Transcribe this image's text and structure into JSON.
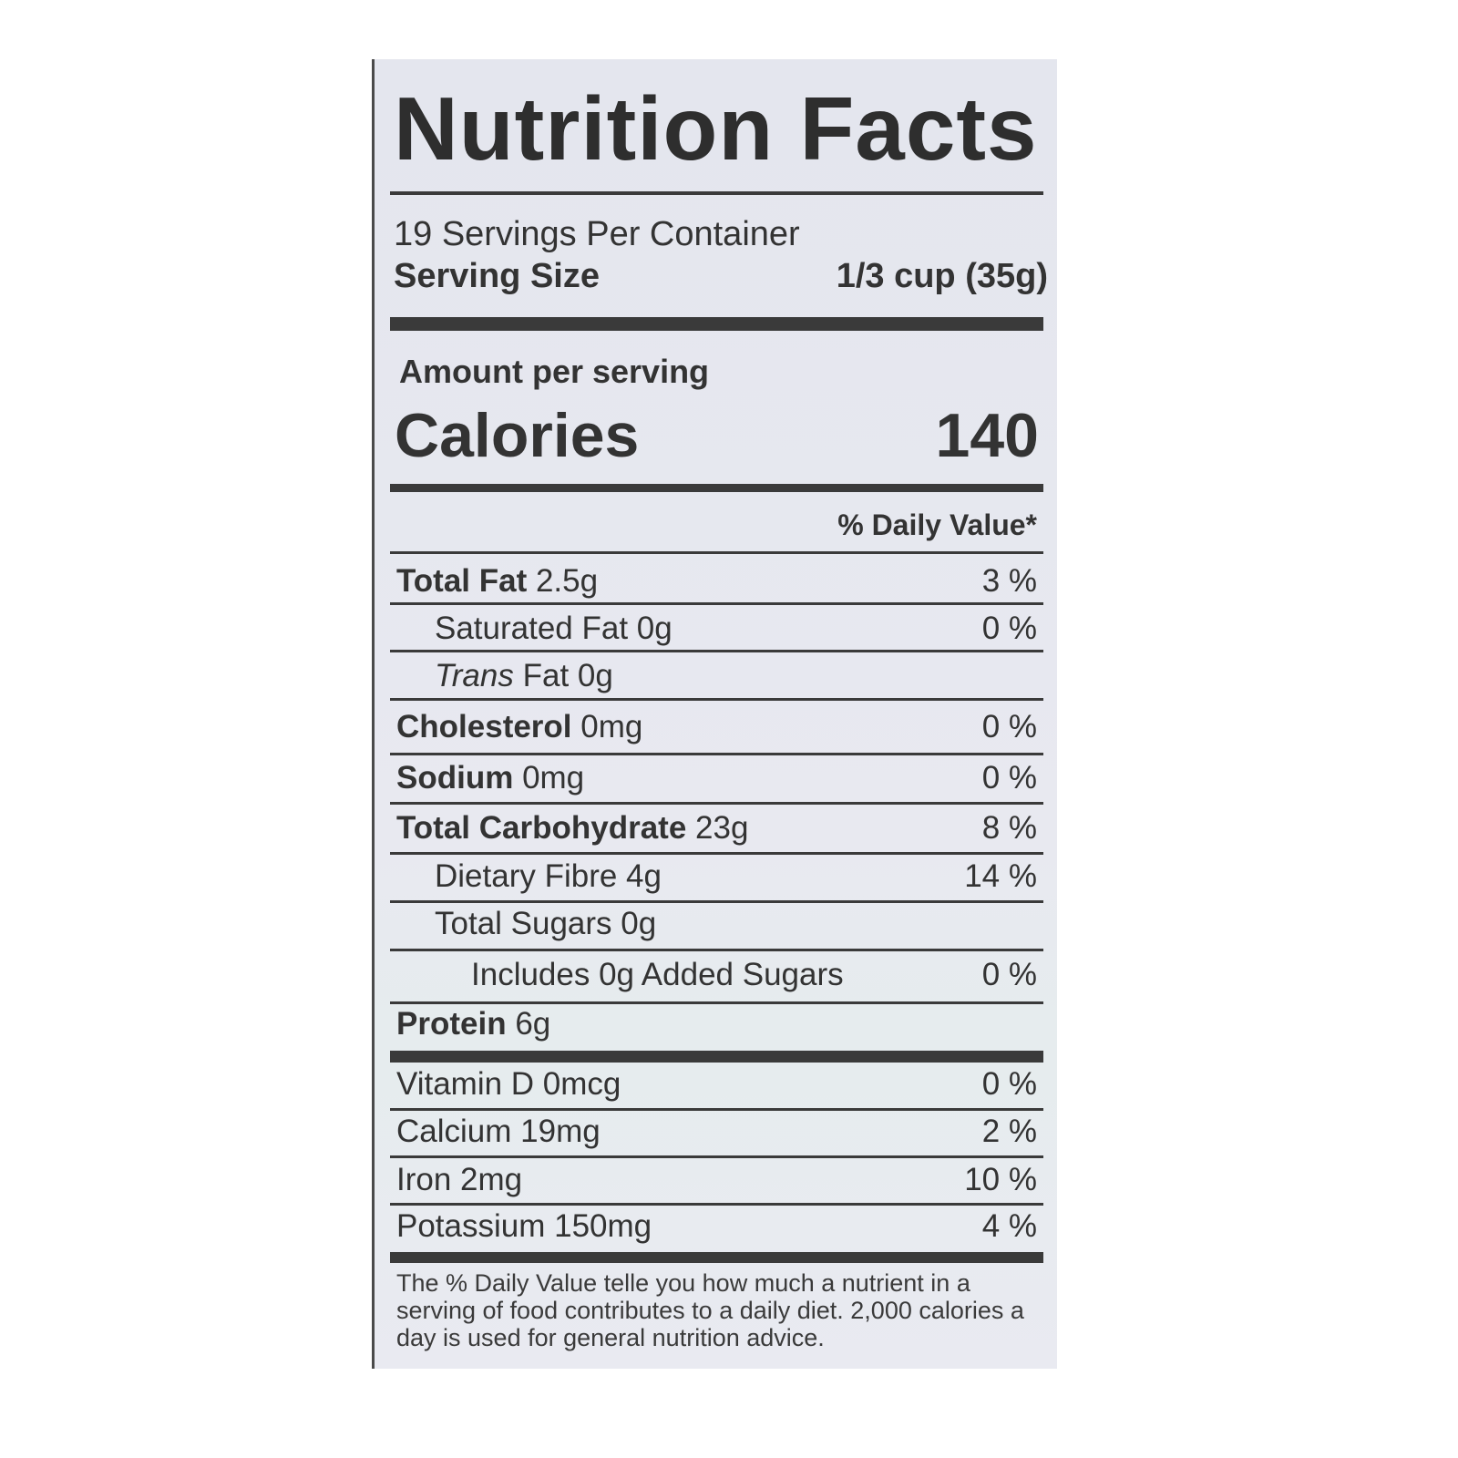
{
  "label": {
    "title": "Nutrition Facts",
    "servings_per_container": "19 Servings Per Container",
    "serving_size_label": "Serving Size",
    "serving_size_value": "1/3 cup (35g)",
    "amount_per_serving": "Amount per serving",
    "calories_label": "Calories",
    "calories_value": "140",
    "daily_value_header": "% Daily Value*",
    "nutrients": [
      {
        "name": "Total Fat",
        "amount": "2.5g",
        "dv": "3 %"
      },
      {
        "name": "Saturated Fat 0g",
        "amount": "",
        "dv": "0 %"
      },
      {
        "name": "Trans",
        "amount": "Fat 0g",
        "dv": ""
      },
      {
        "name": "Cholesterol",
        "amount": "0mg",
        "dv": "0 %"
      },
      {
        "name": "Sodium",
        "amount": "0mg",
        "dv": "0 %"
      },
      {
        "name": "Total Carbohydrate",
        "amount": "23g",
        "dv": "8 %"
      },
      {
        "name": "Dietary Fibre 4g",
        "amount": "",
        "dv": "14 %"
      },
      {
        "name": "Total Sugars 0g",
        "amount": "",
        "dv": ""
      },
      {
        "name": "Includes 0g Added Sugars",
        "amount": "",
        "dv": "0 %"
      },
      {
        "name": "Protein",
        "amount": "6g",
        "dv": ""
      }
    ],
    "vitamins": [
      {
        "name": "Vitamin D 0mcg",
        "dv": "0 %"
      },
      {
        "name": "Calcium 19mg",
        "dv": "2 %"
      },
      {
        "name": "Iron 2mg",
        "dv": "10 %"
      },
      {
        "name": "Potassium 150mg",
        "dv": "4 %"
      }
    ],
    "footnote": "The % Daily Value telle you how much a nutrient in a serving of food contributes to a daily diet. 2,000 calories a day is used for general nutrition advice."
  }
}
